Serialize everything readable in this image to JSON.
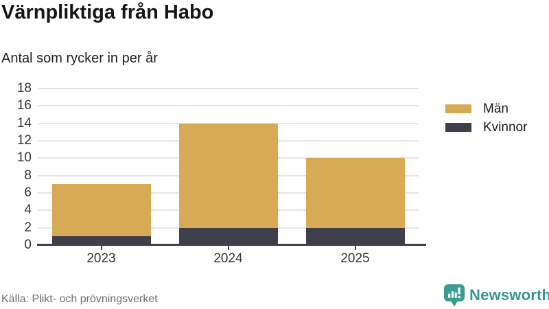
{
  "header": {
    "title": "Värnpliktiga från Habo",
    "subtitle": "Antal som rycker in per år"
  },
  "footer": {
    "source": "Källa: Plikt- och prövningsverket",
    "brand": "Newsworthy"
  },
  "colors": {
    "men": "#d8aa55",
    "women": "#403f4c",
    "gridline": "#e5e5e5",
    "axis": "#403f4c",
    "brand_teal": "#36988f",
    "title_text": "#161616",
    "tick_text": "#333333",
    "source_text": "#6d6d6d"
  },
  "chart_data": {
    "type": "bar",
    "stacked": true,
    "title": "Värnpliktiga från Habo",
    "subtitle": "Antal som rycker in per år",
    "categories": [
      "2023",
      "2024",
      "2025"
    ],
    "series": [
      {
        "name": "Män",
        "color": "#d8aa55",
        "values": [
          6,
          12,
          8
        ]
      },
      {
        "name": "Kvinnor",
        "color": "#403f4c",
        "values": [
          1,
          2,
          2
        ]
      }
    ],
    "stack_bottom_to_top": [
      "Kvinnor",
      "Män"
    ],
    "totals": [
      7,
      14,
      10
    ],
    "xlabel": "",
    "ylabel": "",
    "ylim": [
      0,
      18
    ],
    "ytick_step": 2,
    "grid": "horizontal",
    "legend_position": "right"
  }
}
